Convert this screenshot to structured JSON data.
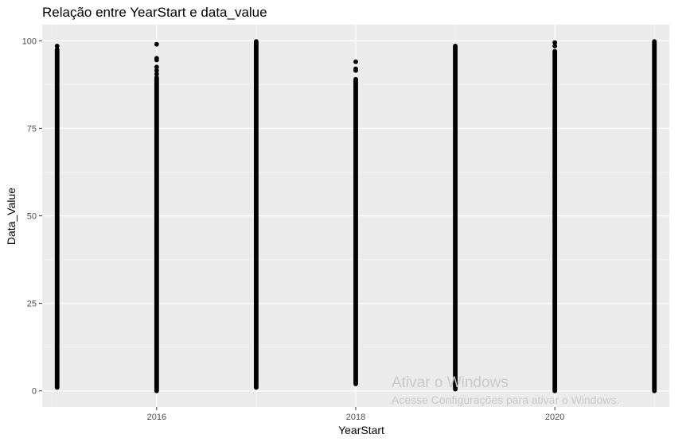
{
  "chart_data": {
    "type": "scatter",
    "title": "Relação entre YearStart e data_value",
    "xlabel": "YearStart",
    "ylabel": "Data_Value",
    "xlim": [
      2014.85,
      2021.15
    ],
    "ylim": [
      -4.6,
      104.6
    ],
    "x_ticks": [
      2016,
      2018,
      2020
    ],
    "x_tick_labels": [
      "2016",
      "2018",
      "2020"
    ],
    "y_ticks": [
      0,
      25,
      50,
      75,
      100
    ],
    "y_tick_labels": [
      "0",
      "25",
      "50",
      "75",
      "100"
    ],
    "grid": true,
    "background": "#ebebeb",
    "point_color": "#000000",
    "columns": [
      {
        "x": 2015,
        "min": 1,
        "max": 97.5,
        "outliers": [
          98.5
        ]
      },
      {
        "x": 2016,
        "min": 0,
        "max": 89.5,
        "outliers": [
          99,
          95,
          94.5,
          92.5,
          91.5,
          90.5
        ]
      },
      {
        "x": 2017,
        "min": 1,
        "max": 99.8,
        "outliers": []
      },
      {
        "x": 2018,
        "min": 2,
        "max": 89,
        "outliers": [
          94,
          92,
          91.5
        ]
      },
      {
        "x": 2019,
        "min": 0.5,
        "max": 98.5,
        "outliers": []
      },
      {
        "x": 2020,
        "min": 0,
        "max": 97,
        "outliers": [
          99.5,
          98.5
        ]
      },
      {
        "x": 2021,
        "min": 0,
        "max": 99.8,
        "outliers": []
      }
    ]
  },
  "watermark": {
    "title": "Ativar o Windows",
    "subtitle": "Acesse Configurações para ativar o Windows."
  }
}
